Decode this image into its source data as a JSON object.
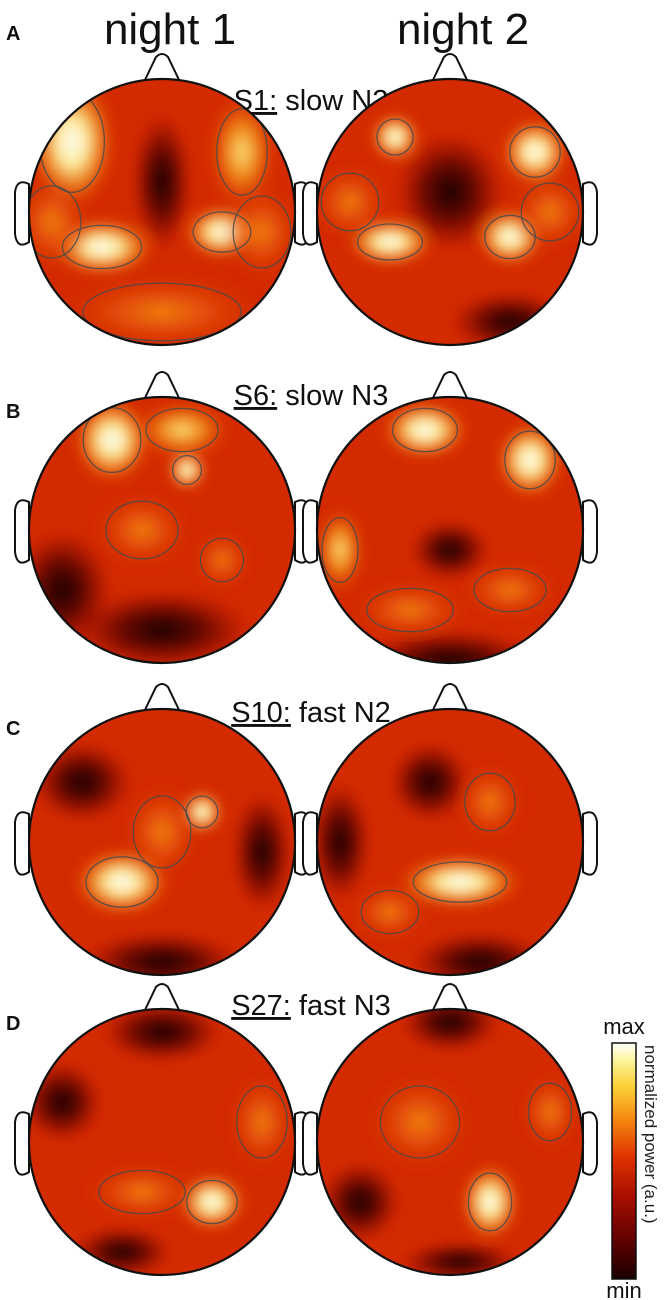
{
  "columns": [
    "night 1",
    "night 2"
  ],
  "panels": [
    {
      "letter": "A",
      "subject": "S1:",
      "condition": " slow N2"
    },
    {
      "letter": "B",
      "subject": "S6:",
      "condition": " slow N3"
    },
    {
      "letter": "C",
      "subject": "S10:",
      "condition": " fast N2"
    },
    {
      "letter": "D",
      "subject": "S27:",
      "condition": " fast N3"
    }
  ],
  "colorbar": {
    "max_label": "max",
    "min_label": "min",
    "title": "normalized power (a.u.)",
    "colormap": [
      "#1a0000",
      "#5a0000",
      "#a80f00",
      "#e03200",
      "#f58a10",
      "#fbd23a",
      "#fdf5a0",
      "#ffffff"
    ]
  }
}
